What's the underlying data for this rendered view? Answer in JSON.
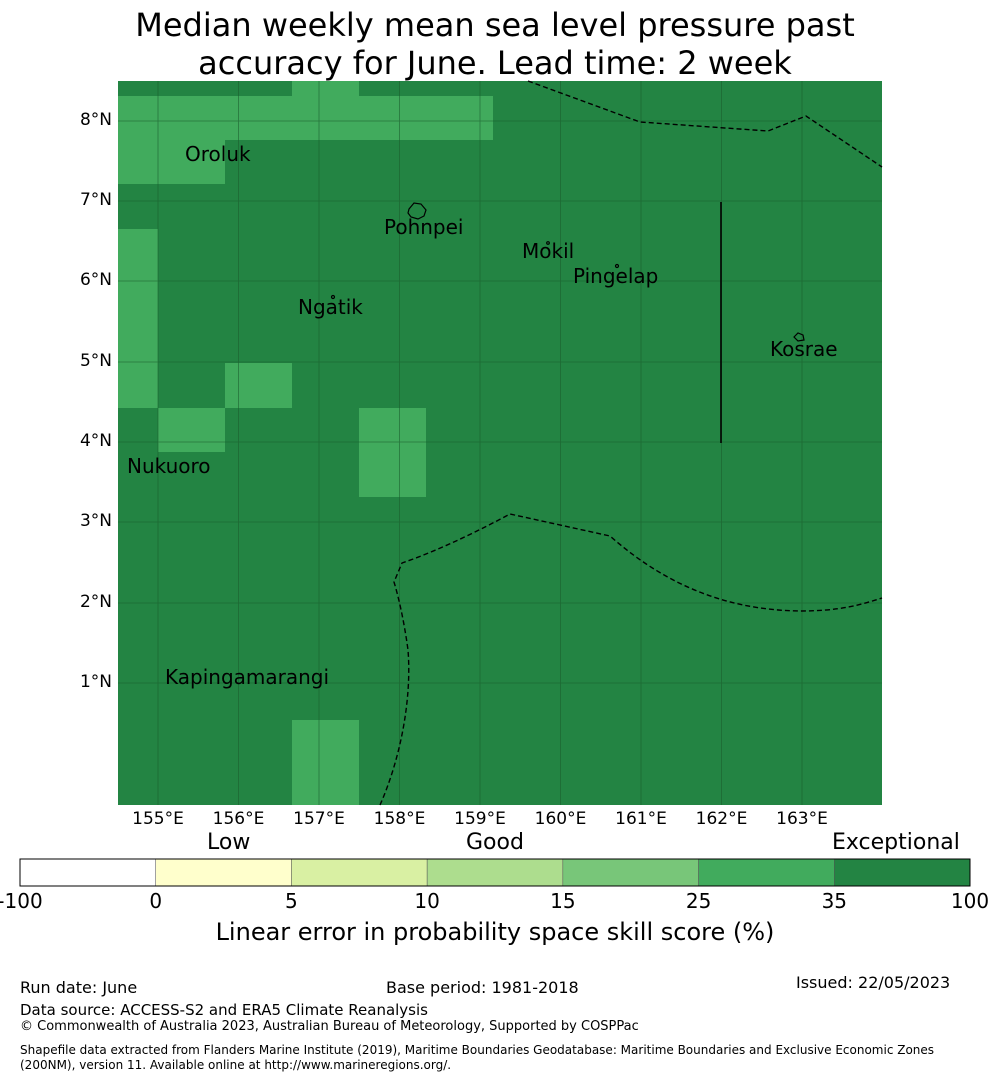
{
  "title": {
    "line1": "Median weekly mean sea level pressure past",
    "line2": "accuracy for June. Lead time: 2 week"
  },
  "map": {
    "lat_labels": [
      "8°N",
      "7°N",
      "6°N",
      "5°N",
      "4°N",
      "3°N",
      "2°N",
      "1°N"
    ],
    "lon_labels": [
      "155°E",
      "156°E",
      "157°E",
      "158°E",
      "159°E",
      "160°E",
      "161°E",
      "162°E",
      "163°E"
    ],
    "places": {
      "oroluk": "Oroluk",
      "pohnpei": "Pohnpei",
      "mokil": "Mokil",
      "pingelap": "Pingelap",
      "ngatik": "Ngatik",
      "kosrae": "Kosrae",
      "nukuoro": "Nukuoro",
      "kapingamarangi": "Kapingamarangi"
    },
    "colors": {
      "exceptional": "#238443",
      "band_25_35": "#41ab5d"
    }
  },
  "colorbar": {
    "categories": {
      "low": "Low",
      "good": "Good",
      "exceptional": "Exceptional"
    },
    "ticks": [
      "-100",
      "0",
      "5",
      "10",
      "15",
      "25",
      "35",
      "100"
    ],
    "colors": [
      "#ffffff",
      "#ffffcc",
      "#d9f0a3",
      "#addd8e",
      "#78c679",
      "#41ab5d",
      "#238443"
    ],
    "label": "Linear error in probability space skill score (%)"
  },
  "footer": {
    "run_date": "Run date: June",
    "base_period": "Base period: 1981-2018",
    "issued": "Issued: 22/05/2023",
    "data_source": "Data source: ACCESS-S2 and ERA5 Climate Reanalysis",
    "copyright": "© Commonwealth of Australia 2023, Australian Bureau of Meteorology, Supported by COSPPac",
    "shapefile_line1": "Shapefile data extracted from Flanders Marine Institute (2019), Maritime Boundaries Geodatabase: Maritime Boundaries and Exclusive Economic Zones",
    "shapefile_line2": "(200NM), version 11. Available online at http://www.marineregions.org/."
  }
}
